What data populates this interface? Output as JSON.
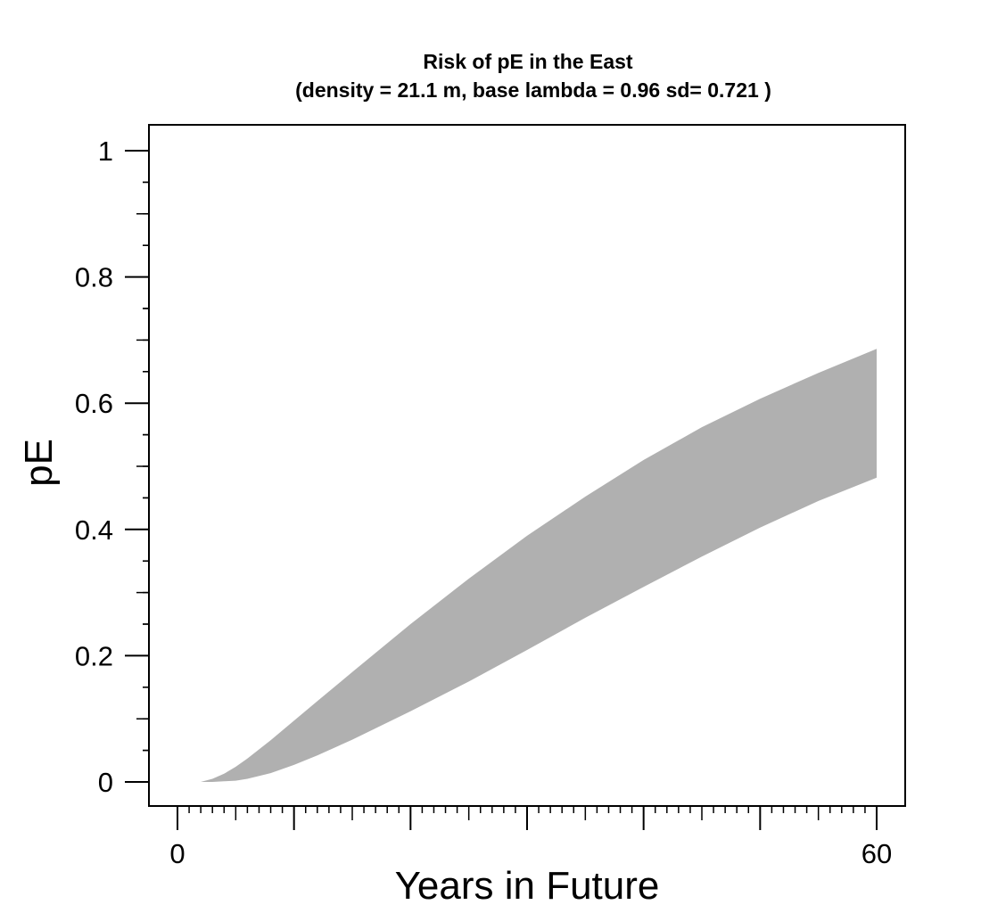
{
  "chart_data": {
    "type": "area",
    "title": "Risk of pE in the East",
    "subtitle": "(density =  21.1 m, base lambda =  0.96 sd= 0.721 )",
    "xlabel": "Years in Future",
    "ylabel": "pE",
    "xlim": [
      0,
      60
    ],
    "ylim": [
      0,
      1
    ],
    "x_ticks": [
      0,
      60
    ],
    "x_tick_labels": [
      "0",
      "60"
    ],
    "y_ticks": [
      0,
      0.2,
      0.4,
      0.6,
      0.8,
      1
    ],
    "y_tick_labels": [
      "0",
      "0.2",
      "0.4",
      "0.6",
      "0.8",
      "1"
    ],
    "band_color": "#b0b0b0",
    "grid": false,
    "series": [
      {
        "x": [
          2,
          3,
          4,
          5,
          6,
          8,
          10,
          12,
          15,
          20,
          25,
          30,
          35,
          40,
          45,
          50,
          55,
          60
        ],
        "upper": [
          0.0,
          0.005,
          0.013,
          0.024,
          0.037,
          0.066,
          0.097,
          0.128,
          0.174,
          0.25,
          0.322,
          0.39,
          0.452,
          0.51,
          0.562,
          0.607,
          0.648,
          0.686
        ],
        "lower": [
          0.0,
          0.0,
          0.001,
          0.002,
          0.005,
          0.014,
          0.027,
          0.042,
          0.067,
          0.112,
          0.159,
          0.209,
          0.26,
          0.309,
          0.357,
          0.403,
          0.445,
          0.482
        ]
      }
    ]
  }
}
